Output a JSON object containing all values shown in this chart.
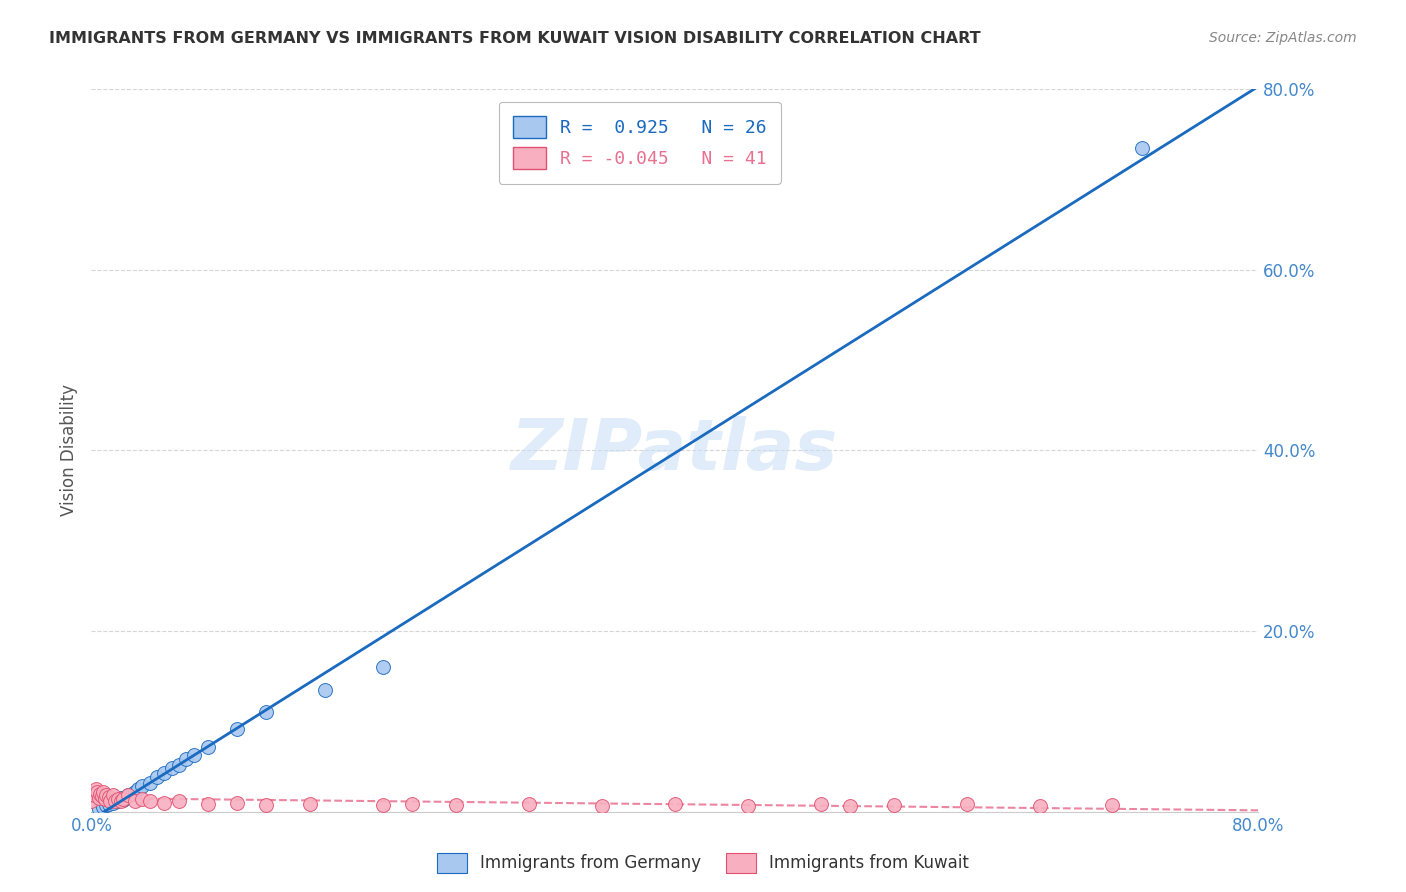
{
  "title": "IMMIGRANTS FROM GERMANY VS IMMIGRANTS FROM KUWAIT VISION DISABILITY CORRELATION CHART",
  "source": "Source: ZipAtlas.com",
  "ylabel": "Vision Disability",
  "xlim": [
    0,
    0.8
  ],
  "ylim": [
    0,
    0.8
  ],
  "yticks": [
    0.0,
    0.2,
    0.4,
    0.6,
    0.8
  ],
  "ytick_labels": [
    "",
    "20.0%",
    "40.0%",
    "60.0%",
    "80.0%"
  ],
  "xtick_left_label": "0.0%",
  "xtick_right_label": "80.0%",
  "germany_color": "#a8c8f0",
  "kuwait_color": "#f8b0c0",
  "germany_R": 0.925,
  "germany_N": 26,
  "kuwait_R": -0.045,
  "kuwait_N": 41,
  "germany_line_color": "#1a6abf",
  "kuwait_line_color": "#e87090",
  "tick_color": "#4488cc",
  "title_color": "#333333",
  "source_color": "#888888",
  "watermark": "ZIPatlas",
  "watermark_color": "#cce0f5",
  "germany_scatter_x": [
    0.005,
    0.008,
    0.01,
    0.012,
    0.015,
    0.018,
    0.02,
    0.022,
    0.025,
    0.028,
    0.03,
    0.032,
    0.035,
    0.04,
    0.045,
    0.05,
    0.055,
    0.06,
    0.065,
    0.07,
    0.08,
    0.1,
    0.12,
    0.16,
    0.2,
    0.72
  ],
  "germany_scatter_y": [
    0.003,
    0.005,
    0.007,
    0.009,
    0.01,
    0.012,
    0.015,
    0.013,
    0.018,
    0.02,
    0.022,
    0.025,
    0.028,
    0.032,
    0.038,
    0.043,
    0.048,
    0.052,
    0.058,
    0.063,
    0.072,
    0.092,
    0.11,
    0.135,
    0.16,
    0.735
  ],
  "kuwait_scatter_x": [
    0.0,
    0.001,
    0.002,
    0.003,
    0.004,
    0.005,
    0.006,
    0.007,
    0.008,
    0.009,
    0.01,
    0.012,
    0.013,
    0.015,
    0.016,
    0.018,
    0.02,
    0.022,
    0.025,
    0.03,
    0.035,
    0.04,
    0.05,
    0.06,
    0.08,
    0.1,
    0.12,
    0.15,
    0.2,
    0.22,
    0.25,
    0.3,
    0.35,
    0.4,
    0.45,
    0.5,
    0.52,
    0.55,
    0.6,
    0.65,
    0.7
  ],
  "kuwait_scatter_y": [
    0.012,
    0.02,
    0.018,
    0.025,
    0.022,
    0.015,
    0.02,
    0.017,
    0.022,
    0.014,
    0.018,
    0.016,
    0.012,
    0.018,
    0.012,
    0.014,
    0.012,
    0.014,
    0.018,
    0.012,
    0.014,
    0.012,
    0.01,
    0.012,
    0.008,
    0.01,
    0.007,
    0.009,
    0.007,
    0.009,
    0.007,
    0.009,
    0.006,
    0.008,
    0.006,
    0.008,
    0.006,
    0.007,
    0.008,
    0.006,
    0.007
  ],
  "germany_legend_label": "R =  0.925   N = 26",
  "kuwait_legend_label": "R = -0.045   N = 41",
  "legend_germany_label": "Immigrants from Germany",
  "legend_kuwait_label": "Immigrants from Kuwait",
  "background_color": "#ffffff",
  "grid_color": "#cccccc"
}
